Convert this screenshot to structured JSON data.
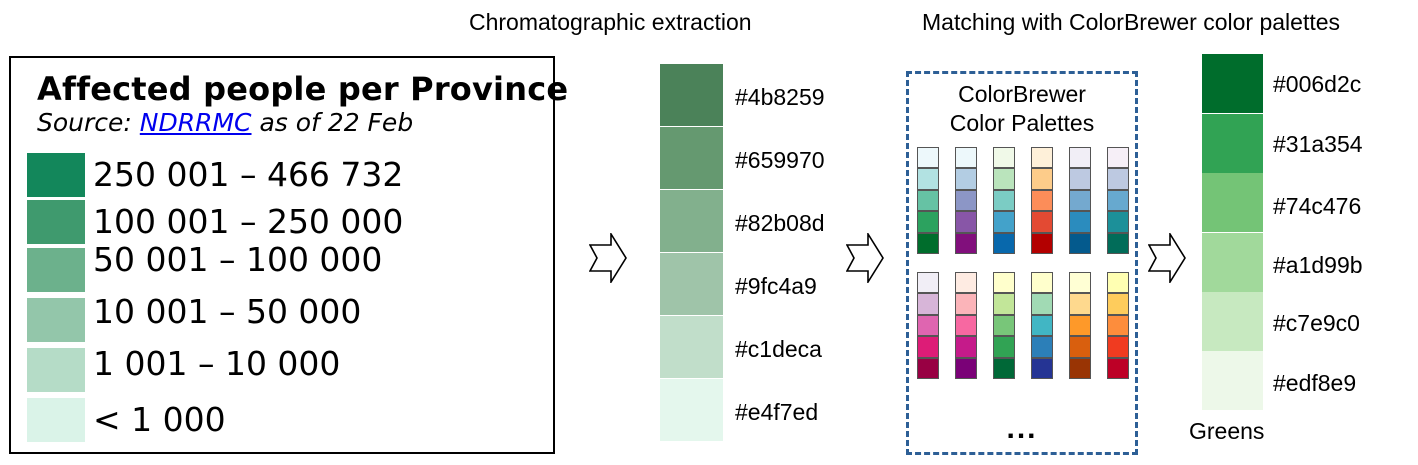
{
  "legend": {
    "title": "Affected people per Province",
    "source_prefix": "Source: ",
    "source_link": "NDRRMC",
    "source_suffix": " as of 22 Feb",
    "items": [
      {
        "label": "250 001 – 466 732",
        "color": "#13875b"
      },
      {
        "label": "100 001 – 250 000",
        "color": "#3f9a6e"
      },
      {
        "label": "50 001 – 100 000",
        "color": "#6cb18c"
      },
      {
        "label": "10 001 – 50 000",
        "color": "#93c6aa"
      },
      {
        "label": "1 001 – 10 000",
        "color": "#b5dcc7"
      },
      {
        "label": "< 1 000",
        "color": "#daf3e8"
      }
    ]
  },
  "extraction": {
    "heading": "Chromatographic extraction",
    "colors": [
      {
        "hex": "#4b8259",
        "color": "#4b8259"
      },
      {
        "hex": "#659970",
        "color": "#659970"
      },
      {
        "hex": "#82b08d",
        "color": "#82b08d"
      },
      {
        "hex": "#9fc4a9",
        "color": "#9fc4a9"
      },
      {
        "hex": "#c1deca",
        "color": "#c1deca"
      },
      {
        "hex": "#e4f7ed",
        "color": "#e4f7ed"
      }
    ]
  },
  "colorbrewer": {
    "title_line1": "ColorBrewer",
    "title_line2": "Color Palettes",
    "ellipsis": "...",
    "palettes_top": [
      [
        "#edf8fb",
        "#b2e2e2",
        "#66c2a4",
        "#2ca25f",
        "#006d2c"
      ],
      [
        "#edf8fb",
        "#b3cde3",
        "#8c96c6",
        "#8856a7",
        "#810f7c"
      ],
      [
        "#f0f9e8",
        "#bae4bc",
        "#7bccc4",
        "#43a2ca",
        "#0868ac"
      ],
      [
        "#fef0d9",
        "#fdcc8a",
        "#fc8d59",
        "#e34a33",
        "#b30000"
      ],
      [
        "#f1eef6",
        "#bdc9e1",
        "#74a9cf",
        "#2b8cbe",
        "#045a8d"
      ],
      [
        "#f6eff7",
        "#bdc9e1",
        "#67a9cf",
        "#1c9099",
        "#016c59"
      ]
    ],
    "palettes_bottom": [
      [
        "#f1eef6",
        "#d7b5d8",
        "#df65b0",
        "#dd1c77",
        "#980043"
      ],
      [
        "#feebe2",
        "#fbb4b9",
        "#f768a1",
        "#c51b8a",
        "#7a0177"
      ],
      [
        "#ffffcc",
        "#c2e699",
        "#78c679",
        "#31a354",
        "#006837"
      ],
      [
        "#ffffcc",
        "#a1dab4",
        "#41b6c4",
        "#2c7fb8",
        "#253494"
      ],
      [
        "#ffffd4",
        "#fed98e",
        "#fe9929",
        "#d95f0e",
        "#993404"
      ],
      [
        "#ffffb2",
        "#fecc5c",
        "#fd8d3c",
        "#f03b20",
        "#bd0026"
      ]
    ]
  },
  "matching": {
    "heading": "Matching with ColorBrewer color palettes",
    "palette_name": "Greens",
    "colors": [
      {
        "hex": "#006d2c",
        "color": "#006d2c"
      },
      {
        "hex": "#31a354",
        "color": "#31a354"
      },
      {
        "hex": "#74c476",
        "color": "#74c476"
      },
      {
        "hex": "#a1d99b",
        "color": "#a1d99b"
      },
      {
        "hex": "#c7e9c0",
        "color": "#c7e9c0"
      },
      {
        "hex": "#edf8e9",
        "color": "#edf8e9"
      }
    ]
  },
  "arrow_icon": "hollow-right-arrow-icon"
}
